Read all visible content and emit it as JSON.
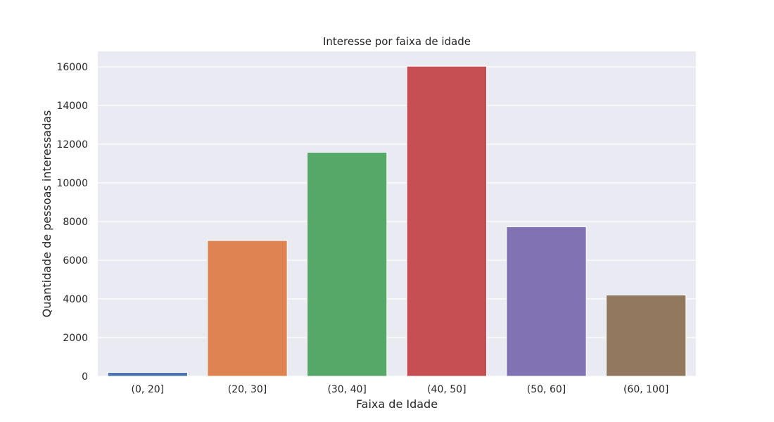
{
  "chart_data": {
    "type": "bar",
    "title": "Interesse por faixa de idade",
    "xlabel": "Faixa de Idade",
    "ylabel": "Quantidade de pessoas interessadas",
    "categories": [
      "(0, 20]",
      "(20, 30]",
      "(30, 40]",
      "(40, 50]",
      "(50, 60]",
      "(60, 100]"
    ],
    "values": [
      200,
      7020,
      11580,
      16030,
      7730,
      4200
    ],
    "colors": [
      "#4c72b0",
      "#dd8452",
      "#55a868",
      "#c44e52",
      "#8172b3",
      "#937860"
    ],
    "ylim": [
      0,
      16800
    ],
    "yticks": [
      0,
      2000,
      4000,
      6000,
      8000,
      10000,
      12000,
      14000,
      16000
    ],
    "background": "#eaeaf2",
    "grid": true,
    "legend": "none"
  }
}
